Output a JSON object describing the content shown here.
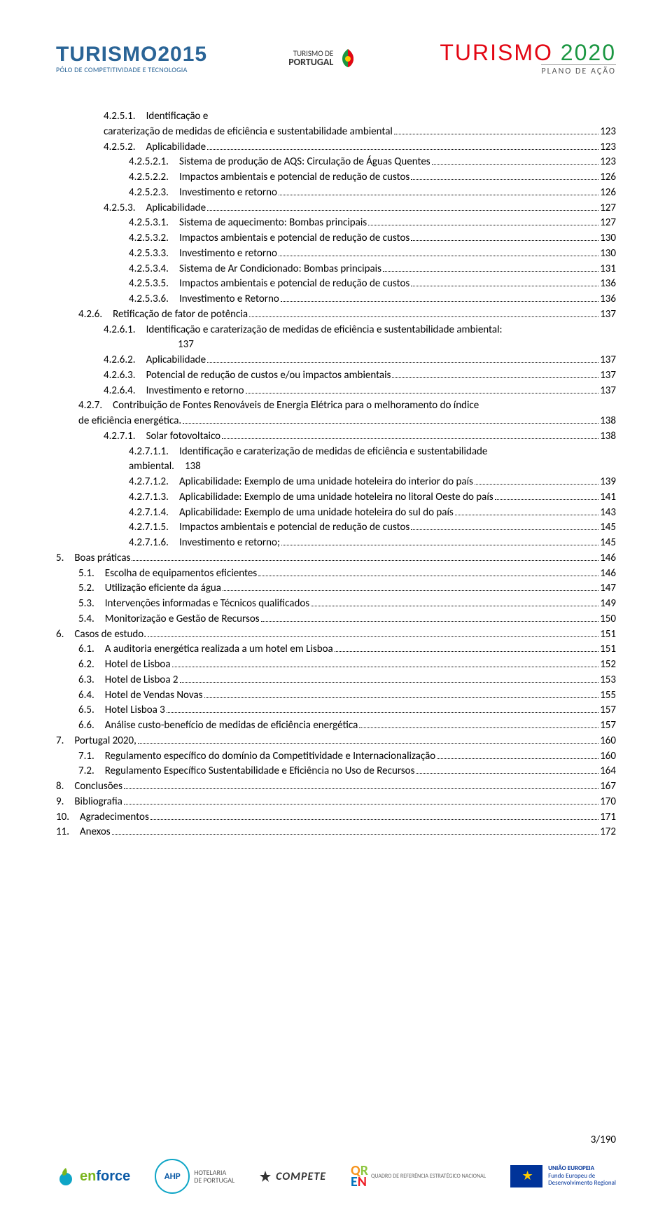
{
  "header": {
    "left_title": "TURISMO",
    "left_year": "2015",
    "left_sub": "PÓLO DE COMPETITIVIDADE E TECNOLOGIA",
    "mid_top": "TURISMO DE",
    "mid_bottom": "PORTUGAL",
    "right_word": "TURISMO",
    "right_year": "2020",
    "right_sub": "PLANO DE AÇÃO"
  },
  "toc": [
    {
      "ind": 2,
      "num": "4.2.5.1.",
      "label": "Identificação e",
      "noline": true
    },
    {
      "ind": 2,
      "num": "",
      "label": "caraterização de medidas de eficiência e sustentabilidade ambiental",
      "pg": "123"
    },
    {
      "ind": 2,
      "num": "4.2.5.2.",
      "label": "Aplicabilidade",
      "pg": "123"
    },
    {
      "ind": 3,
      "num": "4.2.5.2.1.",
      "label": "Sistema de produção de AQS: Circulação de Águas Quentes",
      "pg": "123"
    },
    {
      "ind": 3,
      "num": "4.2.5.2.2.",
      "label": "Impactos ambientais e potencial de redução de custos",
      "pg": "126"
    },
    {
      "ind": 3,
      "num": "4.2.5.2.3.",
      "label": "Investimento e retorno",
      "pg": "126"
    },
    {
      "ind": 2,
      "num": "4.2.5.3.",
      "label": "Aplicabilidade",
      "pg": "127"
    },
    {
      "ind": 3,
      "num": "4.2.5.3.1.",
      "label": "Sistema de aquecimento: Bombas principais",
      "pg": "127"
    },
    {
      "ind": 3,
      "num": "4.2.5.3.2.",
      "label": "Impactos ambientais e potencial de redução de custos",
      "pg": "130"
    },
    {
      "ind": 3,
      "num": "4.2.5.3.3.",
      "label": "Investimento e retorno",
      "pg": "130"
    },
    {
      "ind": 3,
      "num": "4.2.5.3.4.",
      "label": "Sistema de Ar Condicionado: Bombas principais",
      "pg": "131"
    },
    {
      "ind": 3,
      "num": "4.2.5.3.5.",
      "label": "Impactos ambientais e potencial de redução de custos",
      "pg": "136"
    },
    {
      "ind": 3,
      "num": "4.2.5.3.6.",
      "label": "Investimento e Retorno",
      "pg": "136"
    },
    {
      "ind": 1,
      "num": "4.2.6.",
      "label": "Retificação de fator de potência",
      "pg": "137"
    },
    {
      "ind": 2,
      "num": "4.2.6.1.",
      "label": "Identificação e caraterização de medidas de eficiência e sustentabilidade ambiental:",
      "noline": true
    },
    {
      "ind": 2,
      "num": "",
      "label": "137",
      "noline": true,
      "padleft": "174px"
    },
    {
      "ind": 2,
      "num": "4.2.6.2.",
      "label": "Aplicabilidade",
      "pg": "137"
    },
    {
      "ind": 2,
      "num": "4.2.6.3.",
      "label": "Potencial de redução de custos e/ou impactos ambientais",
      "pg": "137"
    },
    {
      "ind": 2,
      "num": "4.2.6.4.",
      "label": "Investimento e retorno",
      "pg": "137"
    },
    {
      "ind": 1,
      "num": "4.2.7.",
      "label": "Contribuição de Fontes Renováveis de Energia Elétrica para o melhoramento do índice",
      "noline": true
    },
    {
      "ind": 1,
      "num": "",
      "label": "de eficiência energética.",
      "pg": "138"
    },
    {
      "ind": 2,
      "num": "4.2.7.1.",
      "label": "Solar fotovoltaico",
      "pg": "138"
    },
    {
      "ind": 3,
      "num": "4.2.7.1.1.",
      "label": "Identificação e caraterização de medidas de eficiência e sustentabilidade",
      "noline": true
    },
    {
      "ind": 3,
      "num": "",
      "label": "ambiental. 138",
      "noline": true
    },
    {
      "ind": 3,
      "num": "4.2.7.1.2.",
      "label": "Aplicabilidade: Exemplo de uma unidade hoteleira do interior do país",
      "pg": "139"
    },
    {
      "ind": 3,
      "num": "4.2.7.1.3.",
      "label": "Aplicabilidade: Exemplo de uma unidade hoteleira no litoral Oeste do país",
      "pg": "141"
    },
    {
      "ind": 3,
      "num": "4.2.7.1.4.",
      "label": "Aplicabilidade: Exemplo de uma unidade hoteleira do sul do país",
      "pg": "143"
    },
    {
      "ind": 3,
      "num": "4.2.7.1.5.",
      "label": "Impactos ambientais e potencial de redução de custos",
      "pg": "145"
    },
    {
      "ind": 3,
      "num": "4.2.7.1.6.",
      "label": "Investimento e retorno;",
      "pg": "145"
    },
    {
      "ind": 0,
      "num": "5.",
      "label": "Boas práticas",
      "pg": "146"
    },
    {
      "ind": 1,
      "num": "5.1.",
      "label": "Escolha de equipamentos eficientes",
      "pg": "146"
    },
    {
      "ind": 1,
      "num": "5.2.",
      "label": "Utilização eficiente da água",
      "pg": "147"
    },
    {
      "ind": 1,
      "num": "5.3.",
      "label": "Intervenções informadas e Técnicos qualificados",
      "pg": "149"
    },
    {
      "ind": 1,
      "num": "5.4.",
      "label": "Monitorização e Gestão de Recursos",
      "pg": "150"
    },
    {
      "ind": 0,
      "num": "6.",
      "label": "Casos de estudo.",
      "pg": "151"
    },
    {
      "ind": 1,
      "num": "6.1.",
      "label": "A auditoria energética realizada a um hotel em Lisboa",
      "pg": "151"
    },
    {
      "ind": 1,
      "num": "6.2.",
      "label": "Hotel de Lisboa",
      "pg": "152"
    },
    {
      "ind": 1,
      "num": "6.3.",
      "label": "Hotel de Lisboa 2",
      "pg": "153"
    },
    {
      "ind": 1,
      "num": "6.4.",
      "label": "Hotel de Vendas Novas",
      "pg": "155"
    },
    {
      "ind": 1,
      "num": "6.5.",
      "label": "Hotel Lisboa 3",
      "pg": "157"
    },
    {
      "ind": 1,
      "num": "6.6.",
      "label": "Análise custo-benefício de medidas de eficiência energética",
      "pg": "157"
    },
    {
      "ind": 0,
      "num": "7.",
      "label": "Portugal 2020,",
      "pg": "160"
    },
    {
      "ind": 1,
      "num": "7.1.",
      "label": "Regulamento específico do domínio da Competitividade e Internacionalização",
      "pg": "160"
    },
    {
      "ind": 1,
      "num": "7.2.",
      "label": "Regulamento Específico Sustentabilidade e Eficiência no Uso de Recursos",
      "pg": "164"
    },
    {
      "ind": 0,
      "num": "8.",
      "label": "Conclusões",
      "pg": "167"
    },
    {
      "ind": 0,
      "num": "9.",
      "label": "Bibliografia",
      "pg": "170"
    },
    {
      "ind": 0,
      "num": "10.",
      "label": "Agradecimentos",
      "pg": "171"
    },
    {
      "ind": 0,
      "num": "11.",
      "label": "Anexos",
      "pg": "172"
    }
  ],
  "page_number": "3/190",
  "footer": {
    "enforce": "enforce",
    "ahp": "AHP",
    "ahp_sub1": "HOTELARIA",
    "ahp_sub2": "DE PORTUGAL",
    "compete": "COMPETE",
    "qren": "QUADRO DE REFERÊNCIA ESTRATÉGICO NACIONAL",
    "eu1": "UNIÃO EUROPEIA",
    "eu2": "Fundo Europeu de",
    "eu3": "Desenvolvimento Regional"
  },
  "colors": {
    "blue": "#2a6496",
    "red": "#e30613",
    "green": "#1a9641"
  }
}
